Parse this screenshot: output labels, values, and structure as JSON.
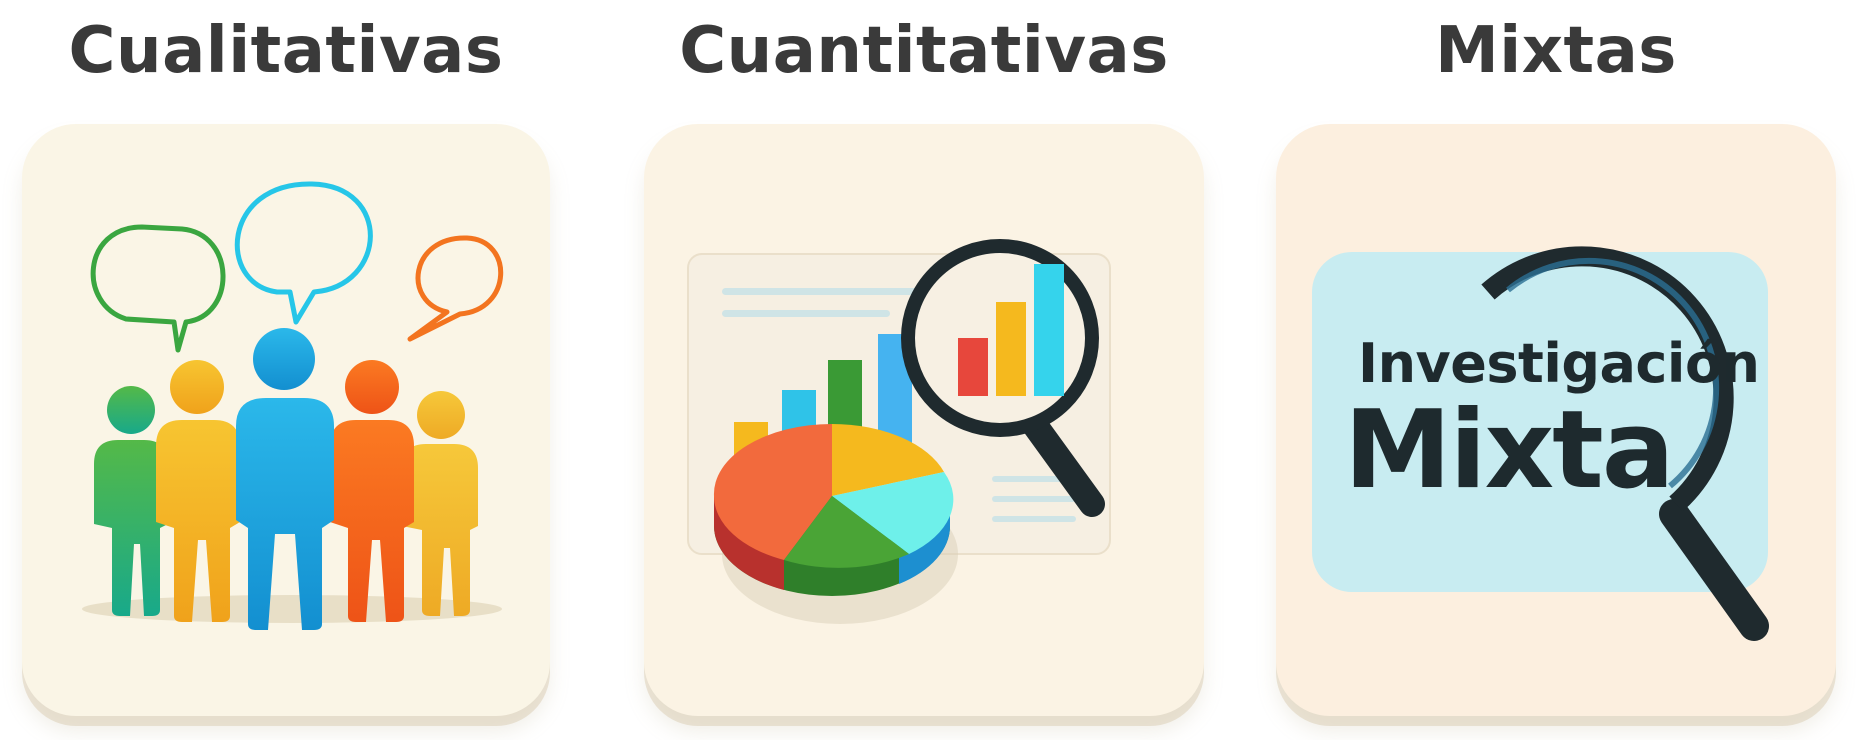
{
  "panels": [
    {
      "title": "Cualitativas",
      "icon": "people-speech-bubbles-icon"
    },
    {
      "title": "Cuantitativas",
      "icon": "pie-chart-magnifier-icon"
    },
    {
      "title": "Mixtas",
      "icon": "magnifier-icon",
      "label_line_1": "Investigación",
      "label_line_2": "Mixta"
    }
  ],
  "colors": {
    "green": "#3aa640",
    "yellow": "#f5b91e",
    "cyan": "#1aaee0",
    "orange": "#f56a1e",
    "red": "#e74c3c",
    "dark": "#1e2a2e"
  }
}
